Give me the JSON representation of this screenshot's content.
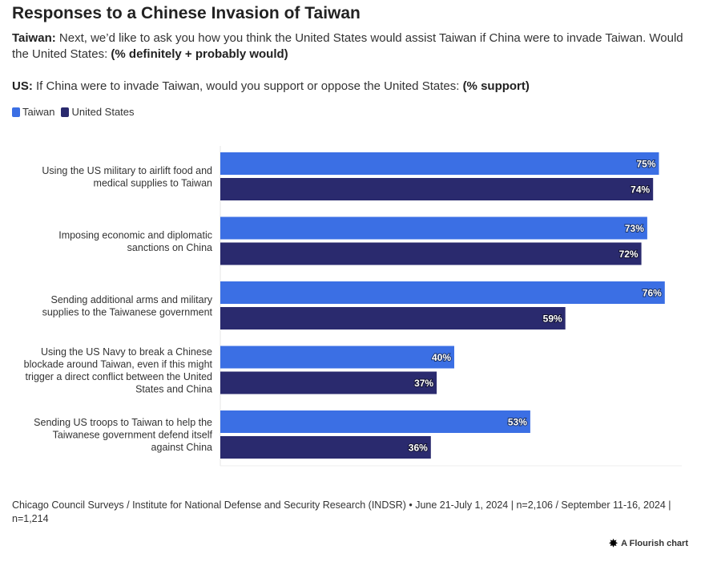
{
  "header": {
    "title": "Responses to a Chinese Invasion of Taiwan",
    "taiwan_lead": "Taiwan:",
    "taiwan_text": " Next, we’d like to ask you how you think the United States would assist Taiwan if China were to invade Taiwan. Would the United States: ",
    "taiwan_strong": "(% definitely + probably would)",
    "us_lead": "US:",
    "us_text": " If China were to invade Taiwan, would you support or oppose the United States: ",
    "us_strong": "(% support)"
  },
  "legend": [
    {
      "name": "Taiwan",
      "color": "#3b6fe4"
    },
    {
      "name": "United States",
      "color": "#2a2a6e"
    }
  ],
  "chart_data": {
    "type": "bar",
    "orientation": "horizontal",
    "categories": [
      "Using the US military to airlift food and medical supplies to Taiwan",
      "Imposing economic and diplomatic sanctions on China",
      "Sending additional arms and military supplies to the Taiwanese government",
      "Using the US Navy to break a Chinese blockade around Taiwan, even if this might trigger a direct conflict between the United States and China",
      "Sending US troops to Taiwan to help the Taiwanese government defend itself against China"
    ],
    "category_lines": [
      [
        "Using the US military to airlift food and",
        "medical supplies to Taiwan"
      ],
      [
        "Imposing economic and diplomatic",
        "sanctions on China"
      ],
      [
        "Sending additional arms and military",
        "supplies to the Taiwanese government"
      ],
      [
        "Using the US Navy to break a Chinese",
        "blockade around Taiwan, even if this might",
        "trigger a direct conflict between the United",
        "States and China"
      ],
      [
        "Sending US troops to Taiwan to help the",
        "Taiwanese government defend itself",
        "against China"
      ]
    ],
    "series": [
      {
        "name": "Taiwan",
        "color": "#3b6fe4",
        "values": [
          75,
          73,
          76,
          40,
          53
        ]
      },
      {
        "name": "United States",
        "color": "#2a2a6e",
        "values": [
          74,
          72,
          59,
          37,
          36
        ]
      }
    ],
    "value_suffix": "%",
    "xlim": [
      0,
      80
    ],
    "grid": false,
    "legend_position": "top-left"
  },
  "footer": {
    "source": "Chicago Council Surveys / Institute for National Defense and Security Research (INDSR) • June 21-July 1, 2024 | n=2,106 / September 11-16, 2024 | n=1,214",
    "credit_icon": "flourish-star-icon",
    "credit": "A Flourish chart"
  }
}
